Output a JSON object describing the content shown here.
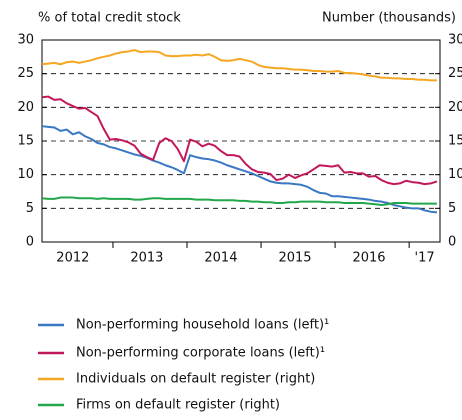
{
  "chart_data": {
    "type": "line",
    "y_label": "% of total credit stock",
    "y2_label": "Number (thousands)",
    "categories": [
      null,
      null,
      null,
      null,
      null,
      "2012",
      null,
      null,
      null,
      null,
      null,
      null,
      null,
      null,
      null,
      null,
      null,
      "2013",
      null,
      null,
      null,
      null,
      null,
      null,
      null,
      null,
      null,
      null,
      null,
      "2014",
      null,
      null,
      null,
      null,
      null,
      null,
      null,
      null,
      null,
      null,
      null,
      "2015",
      null,
      null,
      null,
      null,
      null,
      null,
      null,
      null,
      null,
      null,
      null,
      "2016",
      null,
      null,
      null,
      null,
      null,
      null,
      null,
      null,
      "'17",
      null,
      null
    ],
    "ylim": [
      0,
      30
    ],
    "yticks": [
      0,
      5,
      10,
      15,
      20,
      25,
      30
    ],
    "y2lim": [
      0,
      30
    ],
    "y2ticks": [
      0,
      5,
      10,
      15,
      20,
      25,
      30
    ],
    "grid": true,
    "series": [
      {
        "name": "Non-performing household loans (left)¹",
        "color": "#3a78c4",
        "values": [
          17.2,
          17.1,
          17.0,
          16.5,
          16.7,
          16.0,
          16.3,
          15.7,
          15.3,
          14.7,
          14.5,
          14.1,
          13.9,
          13.6,
          13.3,
          13.0,
          12.8,
          12.5,
          12.1,
          11.8,
          11.4,
          11.1,
          10.7,
          10.2,
          12.9,
          12.6,
          12.4,
          12.3,
          12.1,
          11.8,
          11.4,
          11.1,
          10.8,
          10.5,
          10.2,
          9.8,
          9.4,
          9.0,
          8.8,
          8.7,
          8.7,
          8.6,
          8.5,
          8.2,
          7.7,
          7.3,
          7.2,
          6.8,
          6.8,
          6.7,
          6.6,
          6.5,
          6.4,
          6.3,
          6.1,
          6.0,
          5.8,
          5.5,
          5.3,
          5.1,
          5.0,
          5.0,
          4.7,
          4.5,
          4.4
        ]
      },
      {
        "name": "Non-performing corporate loans (left)¹",
        "color": "#c2185b",
        "values": [
          21.5,
          21.6,
          21.1,
          21.2,
          20.6,
          20.2,
          19.8,
          19.9,
          19.3,
          18.7,
          16.8,
          15.2,
          15.3,
          15.1,
          14.8,
          14.3,
          13.1,
          12.6,
          12.2,
          14.7,
          15.4,
          15.0,
          13.8,
          12.0,
          15.2,
          14.9,
          14.2,
          14.6,
          14.3,
          13.5,
          12.9,
          12.9,
          12.7,
          11.6,
          10.8,
          10.4,
          10.3,
          10.1,
          9.2,
          9.4,
          10.0,
          9.5,
          9.9,
          10.2,
          10.8,
          11.4,
          11.3,
          11.2,
          11.4,
          10.3,
          10.4,
          10.2,
          10.2,
          9.7,
          9.8,
          9.2,
          8.8,
          8.6,
          8.7,
          9.1,
          8.9,
          8.8,
          8.6,
          8.7,
          9.0
        ]
      },
      {
        "name": "Individuals on default register (right)",
        "color": "#f5a623",
        "axis": "y2",
        "values": [
          26.4,
          26.5,
          26.6,
          26.4,
          26.7,
          26.8,
          26.6,
          26.8,
          27.0,
          27.3,
          27.5,
          27.7,
          28.0,
          28.2,
          28.3,
          28.5,
          28.2,
          28.3,
          28.3,
          28.2,
          27.7,
          27.6,
          27.6,
          27.7,
          27.7,
          27.8,
          27.7,
          27.9,
          27.5,
          27.0,
          26.9,
          27.0,
          27.2,
          27.0,
          26.8,
          26.3,
          26.0,
          25.9,
          25.8,
          25.8,
          25.7,
          25.6,
          25.6,
          25.5,
          25.4,
          25.4,
          25.3,
          25.3,
          25.4,
          25.1,
          25.1,
          25.0,
          24.9,
          24.7,
          24.6,
          24.4,
          24.4,
          24.3,
          24.3,
          24.2,
          24.2,
          24.1,
          24.1,
          24.0,
          24.0
        ]
      },
      {
        "name": "Firms on default register (right)",
        "color": "#22a84a",
        "axis": "y2",
        "values": [
          6.5,
          6.4,
          6.4,
          6.6,
          6.6,
          6.6,
          6.5,
          6.5,
          6.5,
          6.4,
          6.5,
          6.4,
          6.4,
          6.4,
          6.4,
          6.3,
          6.3,
          6.4,
          6.5,
          6.5,
          6.4,
          6.4,
          6.4,
          6.4,
          6.4,
          6.3,
          6.3,
          6.3,
          6.2,
          6.2,
          6.2,
          6.2,
          6.1,
          6.1,
          6.0,
          6.0,
          5.9,
          5.9,
          5.8,
          5.8,
          5.9,
          5.9,
          6.0,
          6.0,
          6.0,
          6.0,
          5.9,
          5.9,
          5.9,
          5.8,
          5.8,
          5.8,
          5.8,
          5.7,
          5.6,
          5.5,
          5.6,
          5.8,
          5.8,
          5.8,
          5.7,
          5.7,
          5.7,
          5.7,
          5.7
        ]
      }
    ]
  }
}
